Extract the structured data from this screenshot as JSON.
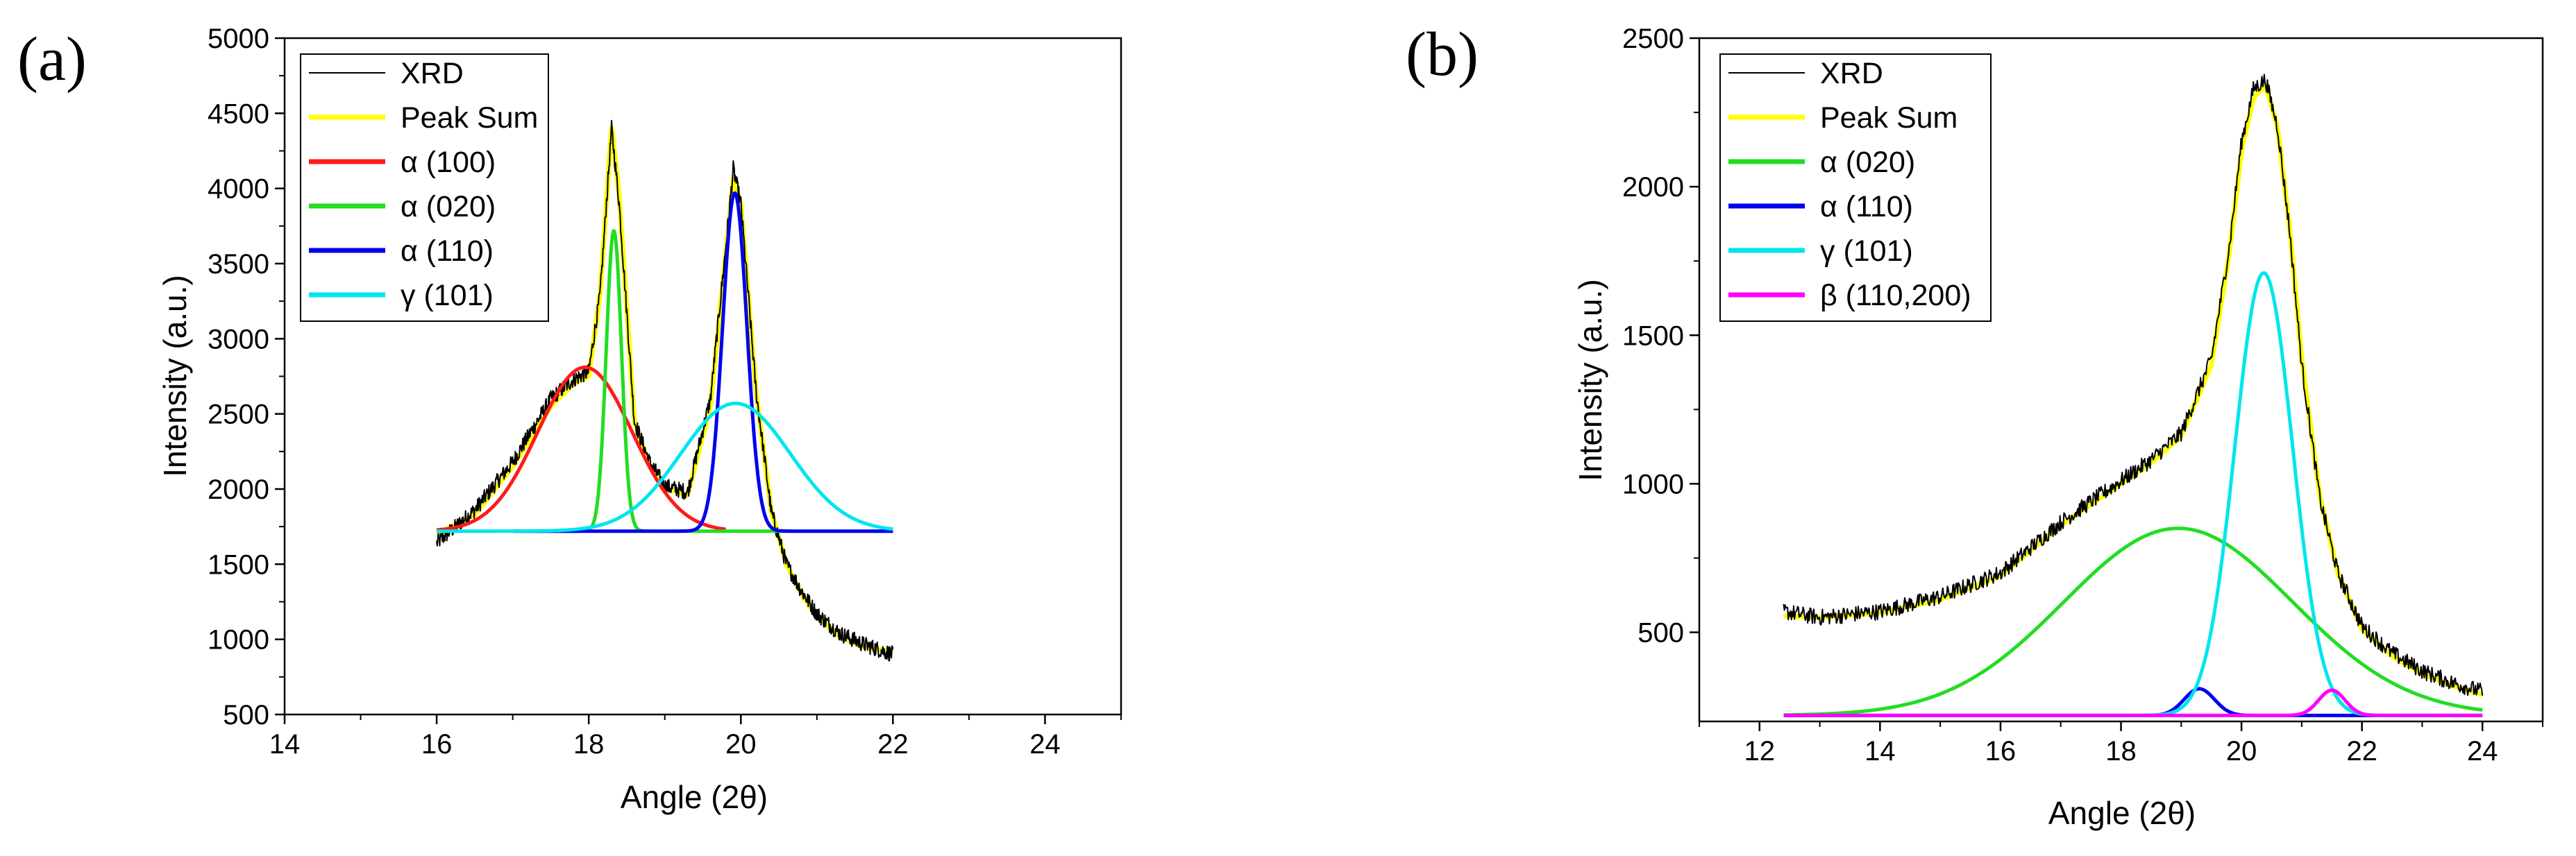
{
  "chart_data": [
    {
      "panel_label": "(a)",
      "type": "line",
      "xlabel": "Angle (2θ)",
      "ylabel": "Intensity (a.u.)",
      "xlim": [
        14,
        25
      ],
      "ylim": [
        500,
        5000
      ],
      "x_ticks": [
        14,
        16,
        18,
        20,
        22,
        24
      ],
      "y_ticks": [
        500,
        1000,
        1500,
        2000,
        2500,
        3000,
        3500,
        4000,
        4500,
        5000
      ],
      "legend_position": "top-left",
      "baseline": 1720,
      "series": [
        {
          "name": "XRD",
          "color": "#000000",
          "kind": "noisy",
          "x": [
            16,
            16.5,
            17,
            17.5,
            17.8,
            18.0,
            18.15,
            18.3,
            18.4,
            18.6,
            18.8,
            19.0,
            19.3,
            19.6,
            19.8,
            19.9,
            20.0,
            20.2,
            20.4,
            20.6,
            20.8,
            21.0,
            21.3,
            21.6,
            22
          ],
          "y": [
            1640,
            1860,
            2180,
            2600,
            2730,
            2780,
            3300,
            4400,
            3900,
            2450,
            2180,
            2020,
            1980,
            2600,
            3600,
            4130,
            3900,
            2650,
            1850,
            1500,
            1320,
            1170,
            1040,
            970,
            900
          ]
        },
        {
          "name": "Peak Sum",
          "color": "#ffff00",
          "kind": "sample",
          "x_range": [
            16,
            22
          ],
          "x": [
            16,
            16.5,
            17,
            17.5,
            17.8,
            18.0,
            18.15,
            18.3,
            18.4,
            18.6,
            18.8,
            19.0,
            19.3,
            19.6,
            19.8,
            19.9,
            20.0,
            20.2,
            20.4,
            20.6,
            20.8,
            21.0,
            21.3,
            21.6,
            22
          ],
          "y": [
            1700,
            1830,
            2150,
            2550,
            2700,
            2750,
            3300,
            4420,
            3950,
            2450,
            2150,
            2000,
            1960,
            2550,
            3560,
            4060,
            3900,
            2650,
            1850,
            1500,
            1300,
            1150,
            1020,
            950,
            920
          ]
        },
        {
          "name": "α (100)",
          "color": "#ff1a1a",
          "kind": "gauss",
          "x_range": [
            16,
            19.8
          ],
          "center": 17.95,
          "amplitude": 1090,
          "sigma": 0.62
        },
        {
          "name": "α (020)",
          "color": "#22dd22",
          "kind": "gauss",
          "x_range": [
            17,
            22
          ],
          "center": 18.33,
          "amplitude": 2000,
          "sigma": 0.1
        },
        {
          "name": "α (110)",
          "color": "#0000ee",
          "kind": "gauss",
          "x_range": [
            17,
            22
          ],
          "center": 19.92,
          "amplitude": 2250,
          "sigma": 0.16
        },
        {
          "name": "γ (101)",
          "color": "#00e5ee",
          "kind": "gauss",
          "x_range": [
            16,
            22
          ],
          "center": 19.93,
          "amplitude": 850,
          "sigma": 0.72
        }
      ]
    },
    {
      "panel_label": "(b)",
      "type": "line",
      "xlabel": "Angle (2θ)",
      "ylabel": "Intensity (a.u.)",
      "xlim": [
        11,
        25
      ],
      "ylim": [
        200,
        2500
      ],
      "x_ticks": [
        12,
        14,
        16,
        18,
        20,
        22,
        24
      ],
      "y_ticks": [
        500,
        1000,
        1500,
        2000,
        2500
      ],
      "legend_position": "top-left",
      "baseline": 220,
      "series": [
        {
          "name": "XRD",
          "color": "#000000",
          "kind": "noisy",
          "x": [
            12.4,
            13,
            14,
            15,
            16,
            17,
            18,
            18.5,
            19.0,
            19.5,
            19.8,
            20.0,
            20.2,
            20.4,
            20.6,
            20.8,
            21.0,
            21.3,
            21.6,
            22,
            22.5,
            23,
            23.5,
            24
          ],
          "y": [
            570,
            550,
            570,
            620,
            700,
            870,
            1010,
            1080,
            1170,
            1420,
            1800,
            2150,
            2330,
            2360,
            2200,
            1850,
            1400,
            950,
            700,
            520,
            430,
            370,
            330,
            300
          ]
        },
        {
          "name": "Peak Sum",
          "color": "#ffff00",
          "kind": "sample",
          "x_range": [
            12.4,
            24
          ],
          "x": [
            12.4,
            13,
            14,
            15,
            16,
            17,
            18,
            18.5,
            19.0,
            19.5,
            19.8,
            20.0,
            20.2,
            20.4,
            20.6,
            20.8,
            21.0,
            21.3,
            21.6,
            22,
            22.5,
            23,
            23.5,
            24
          ],
          "y": [
            555,
            550,
            565,
            610,
            690,
            860,
            1000,
            1070,
            1160,
            1400,
            1780,
            2120,
            2300,
            2340,
            2200,
            1860,
            1420,
            960,
            700,
            510,
            420,
            360,
            320,
            290
          ]
        },
        {
          "name": "α (020)",
          "color": "#22dd22",
          "kind": "gauss",
          "x_range": [
            12.4,
            24
          ],
          "center": 18.95,
          "amplitude": 630,
          "sigma": 1.9
        },
        {
          "name": "α (110)",
          "color": "#0000ee",
          "kind": "gauss",
          "x_range": [
            12.4,
            24
          ],
          "center": 19.3,
          "amplitude": 90,
          "sigma": 0.25
        },
        {
          "name": "γ (101)",
          "color": "#00e5ee",
          "kind": "gauss",
          "x_range": [
            12.4,
            24
          ],
          "center": 20.37,
          "amplitude": 1490,
          "sigma": 0.48
        },
        {
          "name": "β (110,200)",
          "color": "#ff00ff",
          "kind": "gauss",
          "x_range": [
            12.4,
            24
          ],
          "center": 21.5,
          "amplitude": 85,
          "sigma": 0.22
        }
      ]
    }
  ]
}
